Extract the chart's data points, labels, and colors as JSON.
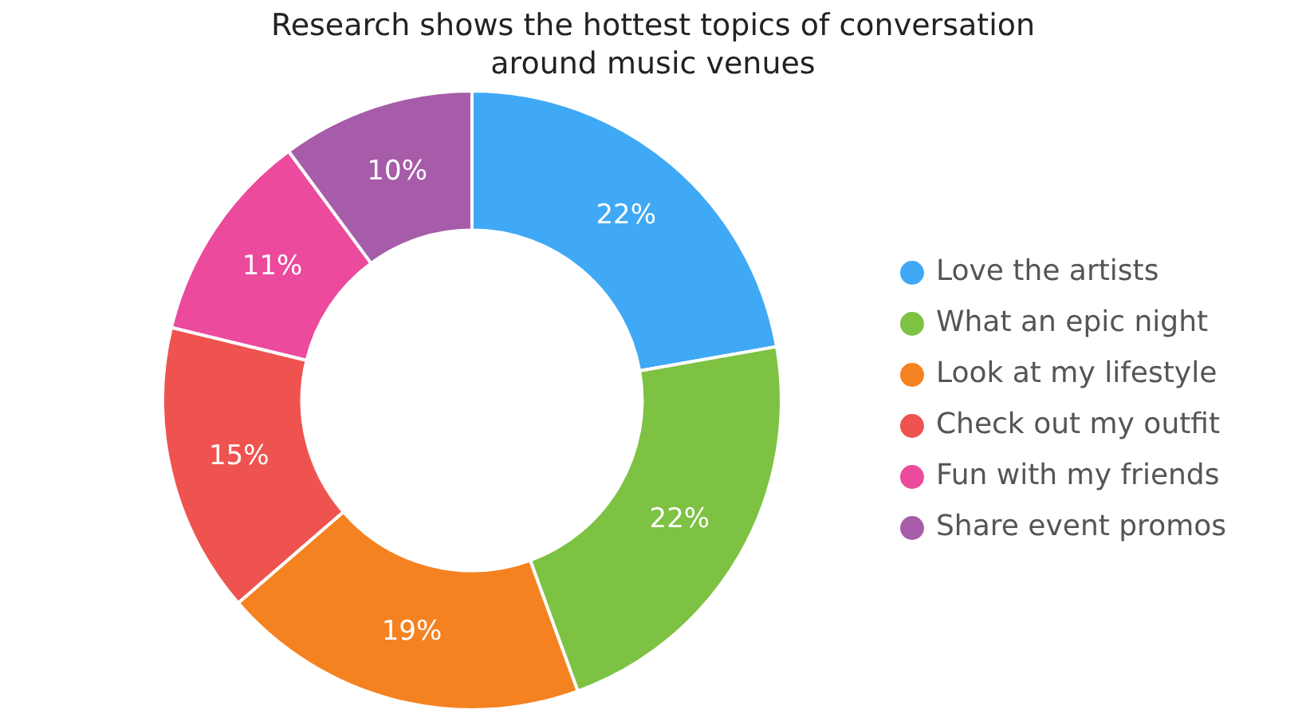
{
  "chart_data": {
    "type": "donut",
    "title": "Research shows the hottest topics of conversation around music venues",
    "categories": [
      "Love the artists",
      "What an epic night",
      "Look at my lifestyle",
      "Check out my outfit",
      "Fun with my friends",
      "Share event promos"
    ],
    "values": [
      22,
      22,
      19,
      15,
      11,
      10
    ],
    "colors": [
      "#3fa9f5",
      "#7dc242",
      "#f58220",
      "#ef5350",
      "#ec4a9c",
      "#a65ca8"
    ],
    "value_labels": [
      "22%",
      "22%",
      "19%",
      "15%",
      "11%",
      "10%"
    ],
    "legend": "right"
  }
}
